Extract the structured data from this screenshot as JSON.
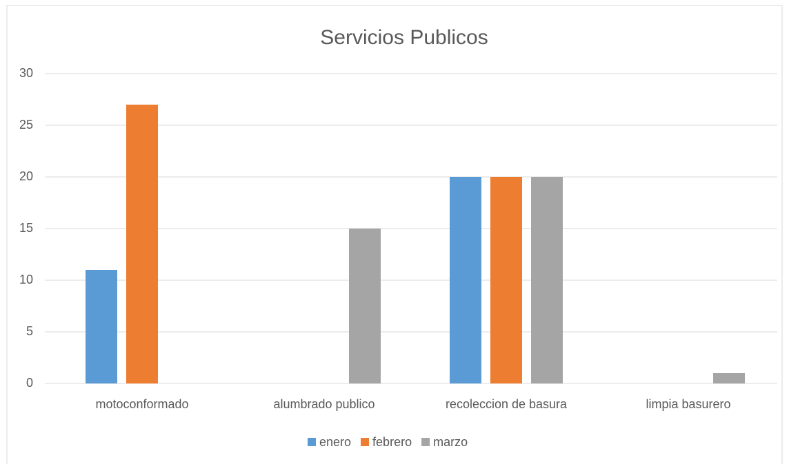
{
  "chart_data": {
    "type": "bar",
    "title": "Servicios Publicos",
    "categories": [
      "motoconformado",
      "alumbrado publico",
      "recoleccion de basura",
      "limpia basurero"
    ],
    "series": [
      {
        "name": "enero",
        "color": "#5b9bd5",
        "values": [
          11,
          0,
          20,
          0
        ]
      },
      {
        "name": "febrero",
        "color": "#ed7d31",
        "values": [
          27,
          0,
          20,
          0
        ]
      },
      {
        "name": "marzo",
        "color": "#a5a5a5",
        "values": [
          0,
          15,
          20,
          1
        ]
      }
    ],
    "ylim": [
      0,
      30
    ],
    "yticks": [
      0,
      5,
      10,
      15,
      20,
      25,
      30
    ],
    "grid": true,
    "legend": "bottom"
  }
}
